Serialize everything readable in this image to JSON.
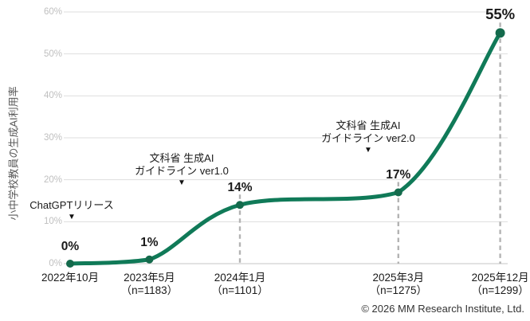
{
  "chart_data": {
    "type": "line",
    "title": "",
    "ylabel": "小中学校教員の生成AI利用率",
    "xlabel": "",
    "ylim": [
      0,
      60
    ],
    "ytick_step": 10,
    "ytick_suffix": "%",
    "grid": true,
    "legend": "none",
    "line_color": "#107a58",
    "marker_color": "#146a4c",
    "grid_color": "#dedede",
    "axis_color": "#c6c6c6",
    "guide_color": "#b3b3b3",
    "categories": [
      "2022年10月",
      "2023年5月",
      "2024年1月",
      "2025年3月",
      "2025年12月"
    ],
    "x_labels": [
      [
        "2022年10月"
      ],
      [
        "2023年5月",
        "（n=1183）"
      ],
      [
        "2024年1月",
        "（n=1101）"
      ],
      [
        "2025年3月",
        "（n=1275）"
      ],
      [
        "2025年12月",
        "（n=1299）"
      ]
    ],
    "months_from_start": [
      0,
      7,
      15,
      29,
      38
    ],
    "values": [
      0,
      1,
      14,
      17,
      55
    ],
    "data_labels": [
      "0%",
      "1%",
      "14%",
      "17%",
      "55%"
    ],
    "guide_points": [
      2,
      3,
      4
    ],
    "yticks": [
      "0%",
      "10%",
      "20%",
      "30%",
      "40%",
      "50%",
      "60%"
    ]
  },
  "annotations": [
    {
      "line1": "ChatGPTリリース",
      "line2": "",
      "marker": "▼"
    },
    {
      "line1": "文科省 生成AI",
      "line2": "ガイドライン ver1.0",
      "marker": "▼"
    },
    {
      "line1": "文科省 生成AI",
      "line2": "ガイドライン ver2.0",
      "marker": "▼"
    }
  ],
  "footer": {
    "copyright": "© 2026 MM Research Institute, Ltd."
  }
}
